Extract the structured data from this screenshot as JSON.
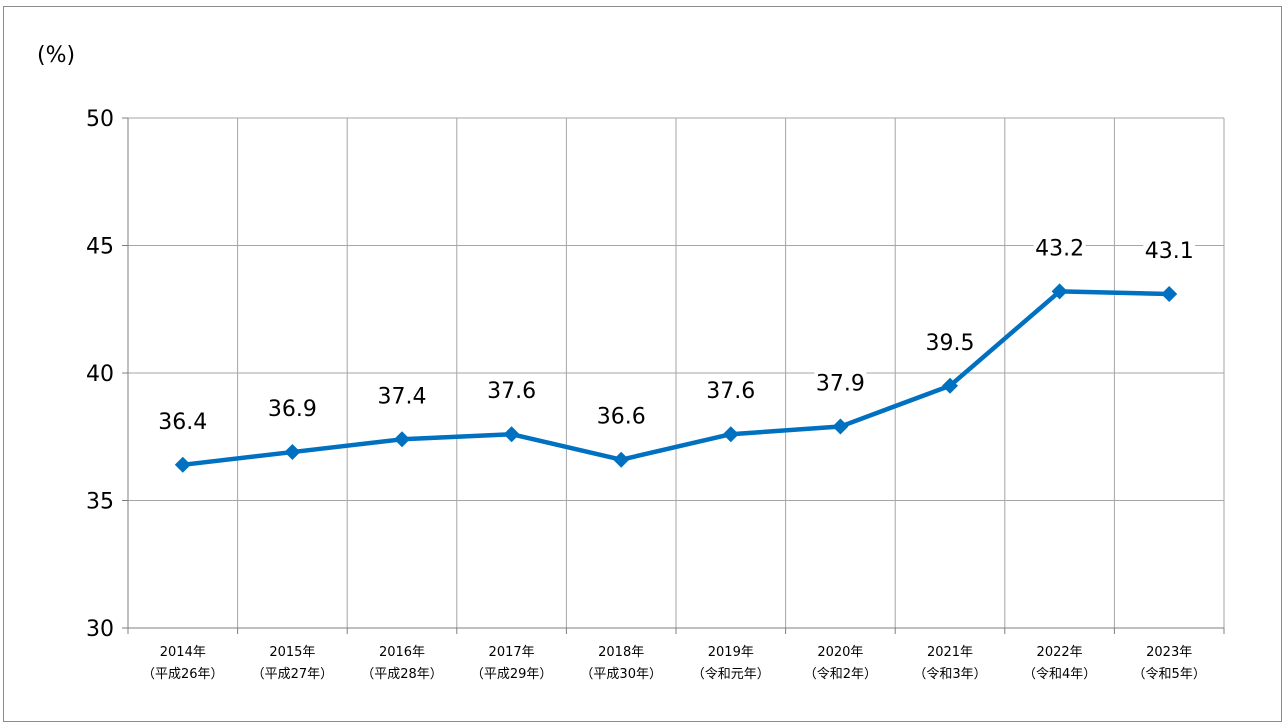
{
  "chart_data": {
    "type": "line",
    "unit_label": "(%)",
    "title": "",
    "xlabel": "",
    "ylabel": "",
    "ylim": [
      30,
      50
    ],
    "yticks": [
      30,
      35,
      40,
      45,
      50
    ],
    "grid": true,
    "legend": "none",
    "categories": [
      {
        "year": "2014年",
        "era": "（平成26年）"
      },
      {
        "year": "2015年",
        "era": "（平成27年）"
      },
      {
        "year": "2016年",
        "era": "（平成28年）"
      },
      {
        "year": "2017年",
        "era": "（平成29年）"
      },
      {
        "year": "2018年",
        "era": "（平成30年）"
      },
      {
        "year": "2019年",
        "era": "（令和元年）"
      },
      {
        "year": "2020年",
        "era": "（令和2年）"
      },
      {
        "year": "2021年",
        "era": "（令和3年）"
      },
      {
        "year": "2022年",
        "era": "（令和4年）"
      },
      {
        "year": "2023年",
        "era": "（令和5年）"
      }
    ],
    "series": [
      {
        "values": [
          36.4,
          36.9,
          37.4,
          37.6,
          36.6,
          37.6,
          37.9,
          39.5,
          43.2,
          43.1
        ],
        "labels": [
          "36.4",
          "36.9",
          "37.4",
          "37.6",
          "36.6",
          "37.6",
          "37.9",
          "39.5",
          "43.2",
          "43.1"
        ],
        "color": "#0070C0"
      }
    ],
    "colors": {
      "line": "#0070C0",
      "grid": "#a6a6a6",
      "axis": "#7f7f7f"
    }
  }
}
